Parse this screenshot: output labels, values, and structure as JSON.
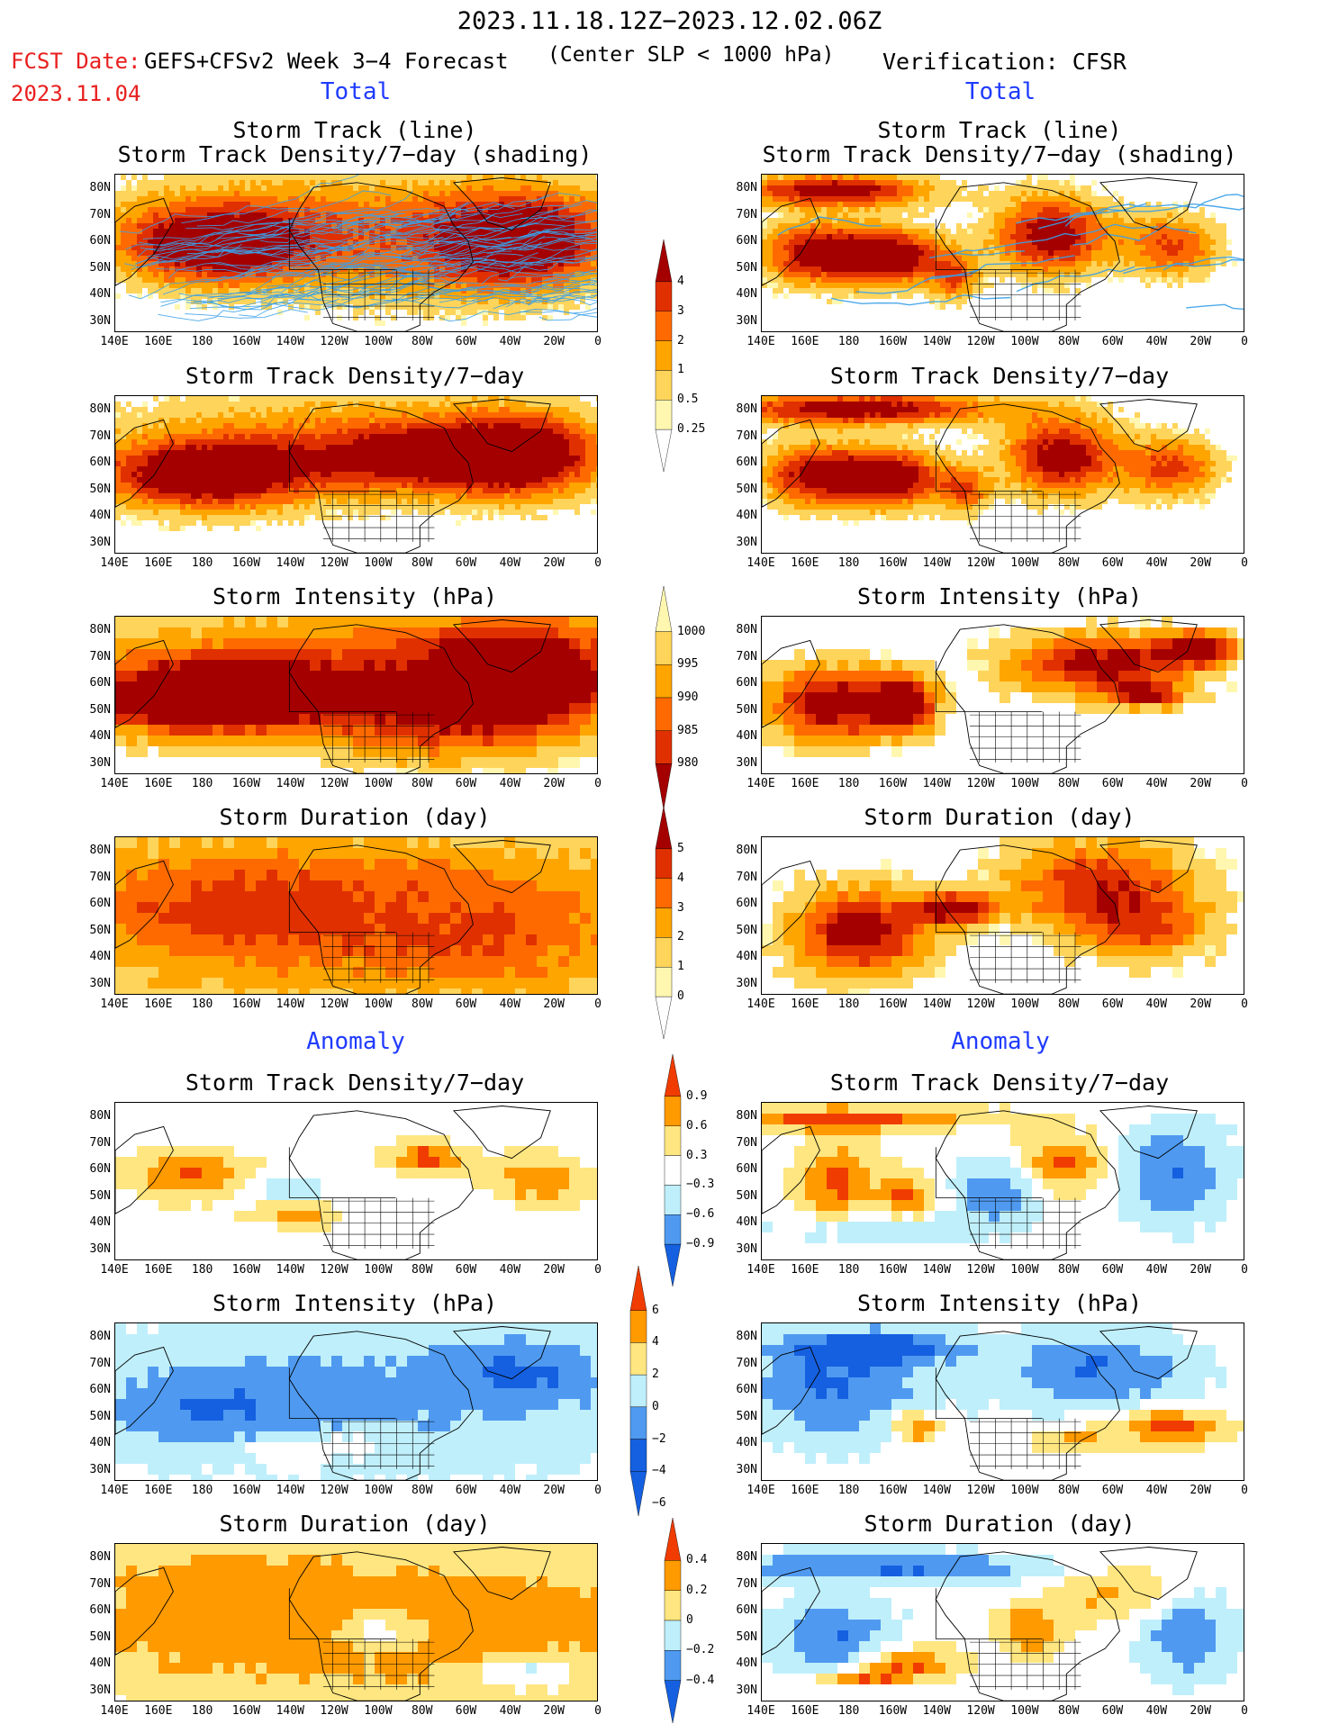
{
  "header": {
    "valid_period": "2023.11.18.12Z−2023.12.02.06Z",
    "fcst_date_label": "FCST Date:",
    "fcst_date": "2023.11.04",
    "forecast_title": "GEFS+CFSv2 Week 3−4 Forecast",
    "criterion": "(Center SLP < 1000 hPa)",
    "verification": "Verification: CFSR"
  },
  "sections": {
    "total_left": "Total",
    "total_right": "Total",
    "anomaly_left": "Anomaly",
    "anomaly_right": "Anomaly"
  },
  "panel_titles": {
    "track_line": "Storm Track (line)",
    "track_shading": "Storm Track Density/7−day (shading)",
    "density": "Storm Track Density/7−day",
    "intensity": "Storm Intensity (hPa)",
    "duration": "Storm Duration (day)"
  },
  "axes": {
    "lat_ticks": [
      "80N",
      "70N",
      "60N",
      "50N",
      "40N",
      "30N"
    ],
    "lon_ticks": [
      "140E",
      "160E",
      "180",
      "160W",
      "140W",
      "120W",
      "100W",
      "80W",
      "60W",
      "40W",
      "20W",
      "0"
    ]
  },
  "colorbars": {
    "density_total": [
      "4",
      "3",
      "2",
      "1",
      "0.5",
      "0.25"
    ],
    "intensity_total": [
      "1000",
      "995",
      "990",
      "985",
      "980"
    ],
    "duration_total": [
      "5",
      "4",
      "3",
      "2",
      "1",
      "0"
    ],
    "density_anom": [
      "0.9",
      "0.6",
      "0.3",
      "−0.3",
      "−0.6",
      "−0.9"
    ],
    "intensity_anom": [
      "6",
      "4",
      "2",
      "0",
      "−2",
      "−4",
      "−6"
    ],
    "duration_anom": [
      "0.4",
      "0.2",
      "0",
      "−0.2",
      "−0.4"
    ]
  },
  "colors": {
    "total_scale": [
      "#fff7b0",
      "#ffd45a",
      "#ffa500",
      "#ff6a00",
      "#e03000",
      "#a50000"
    ],
    "anom_scale": [
      "#1560e0",
      "#4f9af0",
      "#bfeffb",
      "#ffffff",
      "#ffe680",
      "#ff9a00",
      "#f03c00"
    ],
    "title_red": "#e8201f",
    "section_blue": "#1f3bff",
    "track_line": "#3aa0e8"
  }
}
